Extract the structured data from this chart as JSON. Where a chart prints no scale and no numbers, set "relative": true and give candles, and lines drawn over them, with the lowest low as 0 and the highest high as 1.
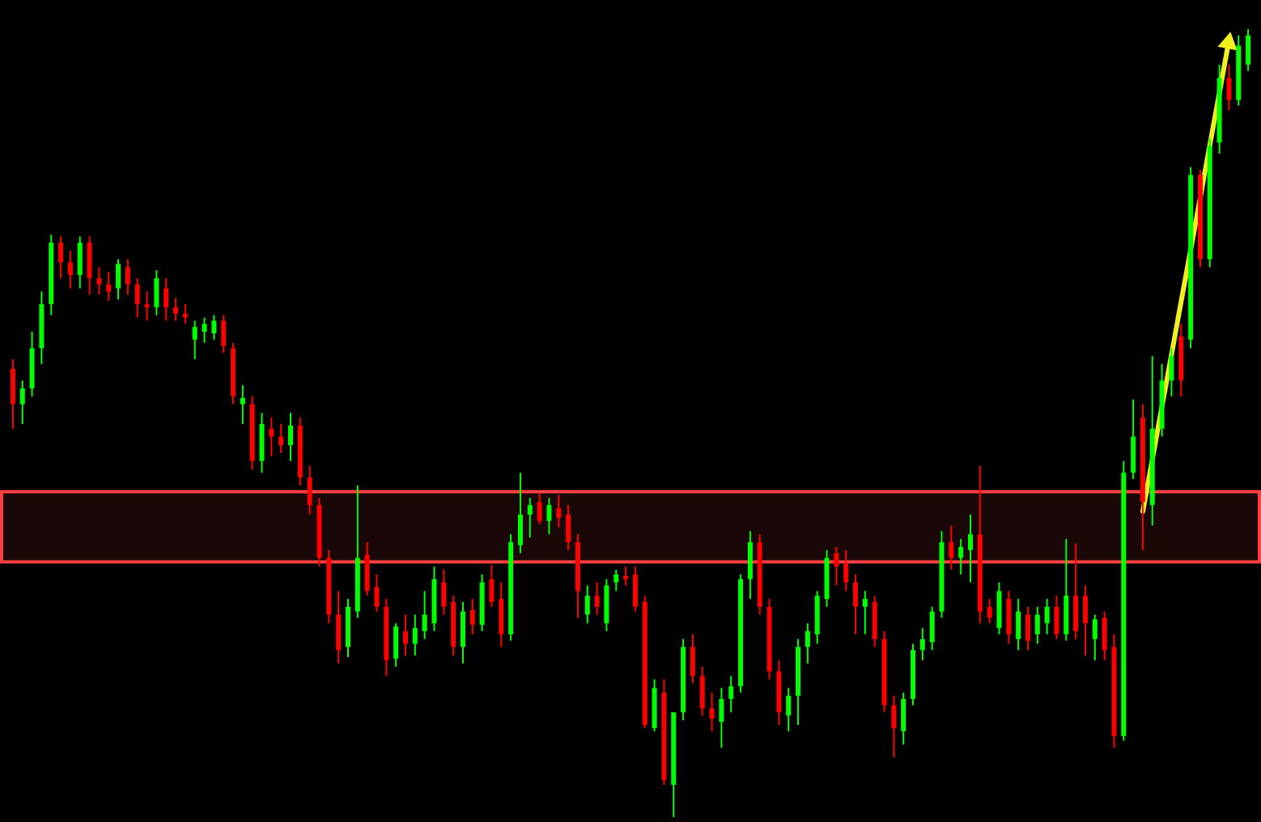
{
  "chart_data": {
    "type": "candlestick",
    "relative": true,
    "categories": [
      null,
      null,
      null,
      null,
      null,
      null,
      null,
      null,
      null,
      null,
      null,
      null,
      null,
      null,
      null,
      null,
      null,
      null,
      null,
      null,
      null,
      null,
      null,
      null,
      null,
      null,
      null,
      null,
      null,
      null,
      null,
      null,
      null,
      null,
      null,
      null,
      null,
      null,
      null,
      null,
      null,
      null,
      null,
      null,
      null,
      null,
      null,
      null,
      null,
      null,
      null,
      null,
      null,
      null,
      null,
      null,
      null,
      null,
      null,
      null,
      null,
      null,
      null,
      null,
      null,
      null,
      null,
      null,
      null,
      null,
      null,
      null,
      null,
      null,
      null,
      null,
      null,
      null,
      null,
      null,
      null,
      null,
      null,
      null,
      null,
      null,
      null,
      null,
      null,
      null,
      null,
      null,
      null,
      null,
      null,
      null,
      null,
      null,
      null,
      null,
      null,
      null,
      null,
      null,
      null,
      null,
      null,
      null,
      null,
      null,
      null,
      null,
      null,
      null,
      null,
      null,
      null,
      null,
      null,
      null,
      null,
      null,
      null,
      null,
      null,
      null,
      null,
      null,
      null,
      null
    ],
    "ohlc": [
      [
        0.569,
        0.581,
        0.493,
        0.524
      ],
      [
        0.524,
        0.554,
        0.499,
        0.544
      ],
      [
        0.544,
        0.616,
        0.534,
        0.595
      ],
      [
        0.595,
        0.667,
        0.575,
        0.651
      ],
      [
        0.651,
        0.739,
        0.637,
        0.729
      ],
      [
        0.729,
        0.737,
        0.684,
        0.704
      ],
      [
        0.704,
        0.719,
        0.671,
        0.688
      ],
      [
        0.688,
        0.737,
        0.671,
        0.729
      ],
      [
        0.729,
        0.737,
        0.663,
        0.684
      ],
      [
        0.684,
        0.698,
        0.663,
        0.676
      ],
      [
        0.676,
        0.692,
        0.655,
        0.667
      ],
      [
        0.671,
        0.708,
        0.657,
        0.702
      ],
      [
        0.698,
        0.708,
        0.663,
        0.676
      ],
      [
        0.676,
        0.684,
        0.634,
        0.651
      ],
      [
        0.651,
        0.667,
        0.63,
        0.647
      ],
      [
        0.647,
        0.694,
        0.637,
        0.684
      ],
      [
        0.671,
        0.684,
        0.63,
        0.647
      ],
      [
        0.647,
        0.659,
        0.63,
        0.639
      ],
      [
        0.639,
        0.651,
        0.626,
        0.634
      ],
      [
        0.606,
        0.63,
        0.581,
        0.622
      ],
      [
        0.616,
        0.634,
        0.602,
        0.626
      ],
      [
        0.614,
        0.637,
        0.606,
        0.63
      ],
      [
        0.63,
        0.637,
        0.589,
        0.598
      ],
      [
        0.595,
        0.602,
        0.524,
        0.534
      ],
      [
        0.524,
        0.548,
        0.499,
        0.532
      ],
      [
        0.524,
        0.534,
        0.441,
        0.452
      ],
      [
        0.452,
        0.513,
        0.437,
        0.499
      ],
      [
        0.493,
        0.507,
        0.458,
        0.483
      ],
      [
        0.483,
        0.499,
        0.462,
        0.472
      ],
      [
        0.472,
        0.513,
        0.452,
        0.497
      ],
      [
        0.497,
        0.507,
        0.421,
        0.431
      ],
      [
        0.431,
        0.446,
        0.384,
        0.396
      ],
      [
        0.396,
        0.405,
        0.318,
        0.329
      ],
      [
        0.329,
        0.339,
        0.246,
        0.257
      ],
      [
        0.257,
        0.287,
        0.195,
        0.212
      ],
      [
        0.216,
        0.277,
        0.203,
        0.267
      ],
      [
        0.261,
        0.421,
        0.253,
        0.329
      ],
      [
        0.333,
        0.349,
        0.281,
        0.287
      ],
      [
        0.292,
        0.308,
        0.261,
        0.267
      ],
      [
        0.267,
        0.277,
        0.179,
        0.199
      ],
      [
        0.201,
        0.246,
        0.191,
        0.242
      ],
      [
        0.236,
        0.257,
        0.205,
        0.22
      ],
      [
        0.22,
        0.257,
        0.205,
        0.24
      ],
      [
        0.236,
        0.287,
        0.226,
        0.257
      ],
      [
        0.246,
        0.318,
        0.236,
        0.302
      ],
      [
        0.298,
        0.314,
        0.257,
        0.267
      ],
      [
        0.273,
        0.281,
        0.205,
        0.216
      ],
      [
        0.216,
        0.273,
        0.195,
        0.261
      ],
      [
        0.263,
        0.277,
        0.232,
        0.244
      ],
      [
        0.244,
        0.308,
        0.236,
        0.298
      ],
      [
        0.302,
        0.32,
        0.267,
        0.273
      ],
      [
        0.277,
        0.298,
        0.216,
        0.232
      ],
      [
        0.232,
        0.359,
        0.224,
        0.349
      ],
      [
        0.345,
        0.437,
        0.335,
        0.384
      ],
      [
        0.384,
        0.405,
        0.355,
        0.396
      ],
      [
        0.4,
        0.411,
        0.372,
        0.376
      ],
      [
        0.376,
        0.405,
        0.359,
        0.396
      ],
      [
        0.392,
        0.409,
        0.368,
        0.38
      ],
      [
        0.384,
        0.396,
        0.339,
        0.349
      ],
      [
        0.349,
        0.359,
        0.253,
        0.287
      ],
      [
        0.257,
        0.294,
        0.246,
        0.281
      ],
      [
        0.281,
        0.298,
        0.257,
        0.267
      ],
      [
        0.246,
        0.302,
        0.236,
        0.294
      ],
      [
        0.298,
        0.314,
        0.287,
        0.308
      ],
      [
        0.306,
        0.318,
        0.294,
        0.302
      ],
      [
        0.308,
        0.318,
        0.261,
        0.267
      ],
      [
        0.273,
        0.281,
        0.113,
        0.117
      ],
      [
        0.113,
        0.175,
        0.109,
        0.164
      ],
      [
        0.158,
        0.175,
        0.041,
        0.047
      ],
      [
        0.041,
        0.133,
        0,
        0.133
      ],
      [
        0.133,
        0.226,
        0.123,
        0.216
      ],
      [
        0.216,
        0.232,
        0.17,
        0.179
      ],
      [
        0.179,
        0.191,
        0.129,
        0.138
      ],
      [
        0.138,
        0.158,
        0.109,
        0.125
      ],
      [
        0.121,
        0.164,
        0.088,
        0.15
      ],
      [
        0.15,
        0.179,
        0.133,
        0.166
      ],
      [
        0.166,
        0.308,
        0.158,
        0.302
      ],
      [
        0.302,
        0.363,
        0.277,
        0.349
      ],
      [
        0.349,
        0.359,
        0.257,
        0.267
      ],
      [
        0.267,
        0.277,
        0.175,
        0.185
      ],
      [
        0.185,
        0.199,
        0.117,
        0.133
      ],
      [
        0.129,
        0.164,
        0.109,
        0.154
      ],
      [
        0.154,
        0.226,
        0.117,
        0.216
      ],
      [
        0.216,
        0.246,
        0.195,
        0.236
      ],
      [
        0.232,
        0.287,
        0.22,
        0.281
      ],
      [
        0.277,
        0.339,
        0.267,
        0.329
      ],
      [
        0.335,
        0.343,
        0.294,
        0.318
      ],
      [
        0.322,
        0.339,
        0.287,
        0.298
      ],
      [
        0.298,
        0.308,
        0.232,
        0.267
      ],
      [
        0.267,
        0.287,
        0.232,
        0.277
      ],
      [
        0.273,
        0.281,
        0.216,
        0.226
      ],
      [
        0.226,
        0.236,
        0.133,
        0.142
      ],
      [
        0.142,
        0.154,
        0.076,
        0.113
      ],
      [
        0.109,
        0.158,
        0.092,
        0.15
      ],
      [
        0.15,
        0.22,
        0.142,
        0.212
      ],
      [
        0.212,
        0.24,
        0.199,
        0.226
      ],
      [
        0.222,
        0.267,
        0.212,
        0.261
      ],
      [
        0.261,
        0.363,
        0.253,
        0.349
      ],
      [
        0.349,
        0.37,
        0.314,
        0.329
      ],
      [
        0.329,
        0.353,
        0.308,
        0.343
      ],
      [
        0.339,
        0.384,
        0.298,
        0.359
      ],
      [
        0.359,
        0.446,
        0.246,
        0.261
      ],
      [
        0.267,
        0.277,
        0.246,
        0.253
      ],
      [
        0.24,
        0.298,
        0.232,
        0.287
      ],
      [
        0.277,
        0.287,
        0.22,
        0.232
      ],
      [
        0.226,
        0.277,
        0.212,
        0.261
      ],
      [
        0.257,
        0.267,
        0.212,
        0.224
      ],
      [
        0.232,
        0.267,
        0.22,
        0.257
      ],
      [
        0.246,
        0.277,
        0.232,
        0.267
      ],
      [
        0.267,
        0.281,
        0.226,
        0.232
      ],
      [
        0.232,
        0.353,
        0.224,
        0.281
      ],
      [
        0.281,
        0.347,
        0.226,
        0.236
      ],
      [
        0.281,
        0.294,
        0.205,
        0.246
      ],
      [
        0.226,
        0.257,
        0.199,
        0.251
      ],
      [
        0.253,
        0.261,
        0.199,
        0.212
      ],
      [
        0.216,
        0.232,
        0.088,
        0.103
      ],
      [
        0.103,
        0.452,
        0.097,
        0.437
      ],
      [
        0.437,
        0.53,
        0.429,
        0.483
      ],
      [
        0.507,
        0.524,
        0.339,
        0.4
      ],
      [
        0.396,
        0.585,
        0.37,
        0.493
      ],
      [
        0.493,
        0.575,
        0.483,
        0.554
      ],
      [
        0.554,
        0.595,
        0.534,
        0.585
      ],
      [
        0.61,
        0.626,
        0.534,
        0.554
      ],
      [
        0.606,
        0.825,
        0.595,
        0.815
      ],
      [
        0.815,
        0.821,
        0.698,
        0.708
      ],
      [
        0.708,
        0.862,
        0.698,
        0.852
      ],
      [
        0.856,
        0.955,
        0.842,
        0.938
      ],
      [
        0.938,
        0.955,
        0.897,
        0.91
      ],
      [
        0.91,
        0.992,
        0.903,
        0.979
      ],
      [
        0.955,
        1,
        0.947,
        0.992
      ]
    ],
    "colors": [
      "#ff0000",
      "#00ff00",
      "#00ff00",
      "#00ff00",
      "#00ff00",
      "#ff0000",
      "#ff0000",
      "#00ff00",
      "#ff0000",
      "#ff0000",
      "#ff0000",
      "#00ff00",
      "#ff0000",
      "#ff0000",
      "#ff0000",
      "#00ff00",
      "#ff0000",
      "#ff0000",
      "#ff0000",
      "#00ff00",
      "#00ff00",
      "#00ff00",
      "#ff0000",
      "#ff0000",
      "#00ff00",
      "#ff0000",
      "#00ff00",
      "#ff0000",
      "#ff0000",
      "#00ff00",
      "#ff0000",
      "#ff0000",
      "#ff0000",
      "#ff0000",
      "#ff0000",
      "#00ff00",
      "#00ff00",
      "#ff0000",
      "#ff0000",
      "#ff0000",
      "#00ff00",
      "#ff0000",
      "#00ff00",
      "#00ff00",
      "#00ff00",
      "#ff0000",
      "#ff0000",
      "#00ff00",
      "#ff0000",
      "#00ff00",
      "#ff0000",
      "#ff0000",
      "#00ff00",
      "#00ff00",
      "#00ff00",
      "#ff0000",
      "#00ff00",
      "#ff0000",
      "#ff0000",
      "#ff0000",
      "#00ff00",
      "#ff0000",
      "#00ff00",
      "#00ff00",
      "#ff0000",
      "#ff0000",
      "#ff0000",
      "#00ff00",
      "#ff0000",
      "#00ff00",
      "#00ff00",
      "#ff0000",
      "#ff0000",
      "#ff0000",
      "#00ff00",
      "#00ff00",
      "#00ff00",
      "#00ff00",
      "#ff0000",
      "#ff0000",
      "#ff0000",
      "#00ff00",
      "#00ff00",
      "#00ff00",
      "#00ff00",
      "#00ff00",
      "#ff0000",
      "#ff0000",
      "#ff0000",
      "#00ff00",
      "#ff0000",
      "#ff0000",
      "#ff0000",
      "#00ff00",
      "#00ff00",
      "#00ff00",
      "#00ff00",
      "#00ff00",
      "#ff0000",
      "#00ff00",
      "#00ff00",
      "#ff0000",
      "#ff0000",
      "#00ff00",
      "#ff0000",
      "#00ff00",
      "#ff0000",
      "#00ff00",
      "#00ff00",
      "#ff0000",
      "#00ff00",
      "#ff0000",
      "#ff0000",
      "#00ff00",
      "#ff0000",
      "#ff0000",
      "#00ff00",
      "#00ff00",
      "#ff0000",
      "#00ff00",
      "#00ff00",
      "#00ff00",
      "#ff0000",
      "#00ff00",
      "#ff0000",
      "#00ff00",
      "#00ff00",
      "#ff0000",
      "#00ff00",
      "#00ff00"
    ],
    "series": [
      {
        "type": "line",
        "color": "#f0f020",
        "values": [
          null,
          null,
          null,
          null,
          null,
          null,
          null,
          null,
          null,
          null,
          null,
          null,
          null,
          null,
          null,
          null,
          null,
          null,
          null,
          null,
          null,
          null,
          null,
          null,
          null,
          null,
          null,
          null,
          null,
          null,
          null,
          null,
          null,
          null,
          null,
          null,
          null,
          null,
          null,
          null,
          null,
          null,
          null,
          null,
          null,
          null,
          null,
          null,
          null,
          null,
          null,
          null,
          null,
          null,
          null,
          null,
          null,
          null,
          null,
          null,
          null,
          null,
          null,
          null,
          null,
          null,
          null,
          null,
          null,
          null,
          null,
          null,
          null,
          null,
          null,
          null,
          null,
          null,
          null,
          null,
          null,
          null,
          null,
          null,
          null,
          null,
          null,
          null,
          null,
          null,
          null,
          null,
          null,
          null,
          null,
          null,
          null,
          null,
          null,
          null,
          null,
          null,
          null,
          null,
          null,
          null,
          null,
          null,
          null,
          null,
          null,
          null,
          null,
          null,
          null,
          null,
          null,
          null,
          0.388,
          0.454,
          0.521,
          0.587,
          0.654,
          0.72,
          0.786,
          0.853,
          0.919,
          0.986,
          null,
          null
        ]
      }
    ],
    "bands": [
      {
        "axis": "y",
        "from": 0.324,
        "to": 0.413,
        "color": "#ff4040"
      }
    ]
  }
}
